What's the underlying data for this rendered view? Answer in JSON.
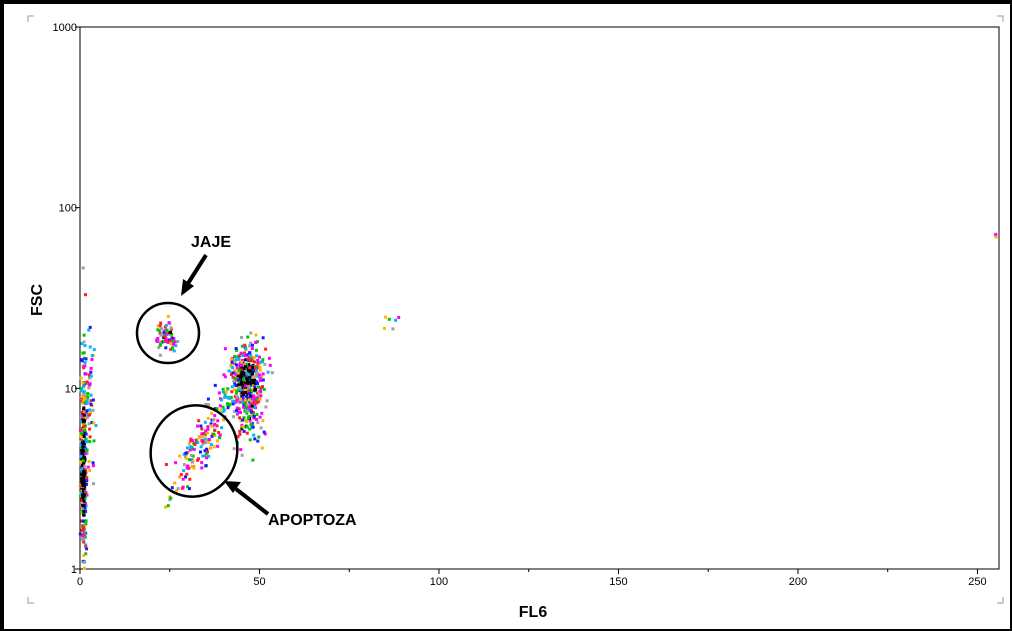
{
  "chart_data": {
    "type": "scatter",
    "title": "",
    "xlabel": "FL6",
    "ylabel": "FSC",
    "xlim": [
      0,
      256
    ],
    "ylim": [
      1,
      1000
    ],
    "y_scale": "log",
    "grid": false,
    "x_ticks": [
      "0",
      "50",
      "100",
      "150",
      "200",
      "250"
    ],
    "y_ticks": [
      "1",
      "10",
      "100",
      "1000"
    ],
    "annotations": [
      {
        "text": "JAJE",
        "ellipse_center": [
          24.5,
          19.5
        ]
      },
      {
        "text": "APOPTOZA",
        "ellipse_center": [
          31,
          4.2
        ]
      }
    ],
    "colors": [
      "#000000",
      "#1a1aff",
      "#00b4ff",
      "#00c800",
      "#ff2020",
      "#ff00ff",
      "#ffb400",
      "#a0a0a0"
    ],
    "clusters": [
      {
        "cx": 1.0,
        "cy": 4.0,
        "sx": 0.4,
        "sy": 0.28,
        "n": 360,
        "dense": 0.75
      },
      {
        "cx": 2.5,
        "cy": 8.0,
        "sx": 0.8,
        "sy": 0.22,
        "n": 60,
        "dense": 0.05
      },
      {
        "cx": 46.5,
        "cy": 11.0,
        "sx": 2.2,
        "sy": 0.1,
        "n": 420,
        "dense": 0.55
      },
      {
        "cx": 47.0,
        "cy": 7.0,
        "sx": 2.4,
        "sy": 0.1,
        "n": 90,
        "dense": 0.05
      },
      {
        "cx": 24.5,
        "cy": 19.5,
        "sx": 1.4,
        "sy": 0.045,
        "n": 70,
        "dense": 0.15
      },
      {
        "cx": 34.0,
        "cy": 5.0,
        "sx": 5.0,
        "sy": 0.08,
        "n": 170,
        "dense": 0.03,
        "trend": 0.032
      },
      {
        "cx": 86.5,
        "cy": 24.0,
        "sx": 2.0,
        "sy": 0.06,
        "n": 6,
        "dense": 0.0
      },
      {
        "cx": 255.0,
        "cy": 70.0,
        "sx": 0.3,
        "sy": 0.01,
        "n": 3,
        "dense": 0.0
      }
    ]
  }
}
